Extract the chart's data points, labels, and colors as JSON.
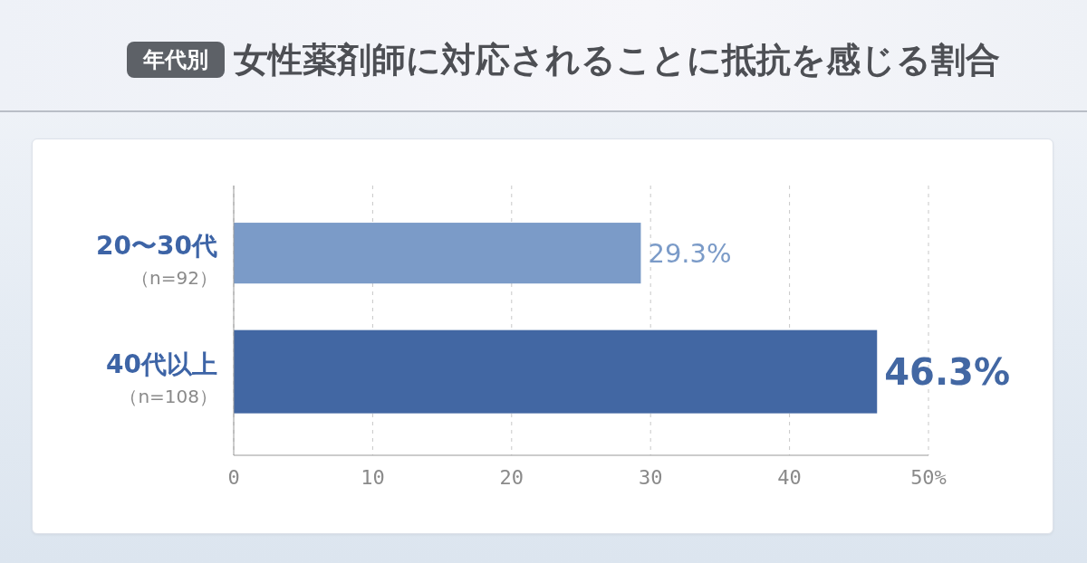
{
  "chart_data": {
    "type": "bar",
    "orientation": "horizontal",
    "title": "女性薬剤師に対応されることに抵抗を感じる割合",
    "subtitle": "年代別",
    "categories": [
      "20〜30代（n=92）",
      "40代以上（n=108）"
    ],
    "values": [
      29.3,
      46.3
    ],
    "colors": [
      "#7b9bc8",
      "#4267a3"
    ],
    "value_labels": [
      "29.3%",
      "46.3%"
    ],
    "xlim": [
      0,
      50
    ],
    "xticks": [
      0,
      10,
      20,
      30,
      40,
      {
        "value": 50,
        "label": "50%"
      }
    ],
    "grid": "x"
  }
}
